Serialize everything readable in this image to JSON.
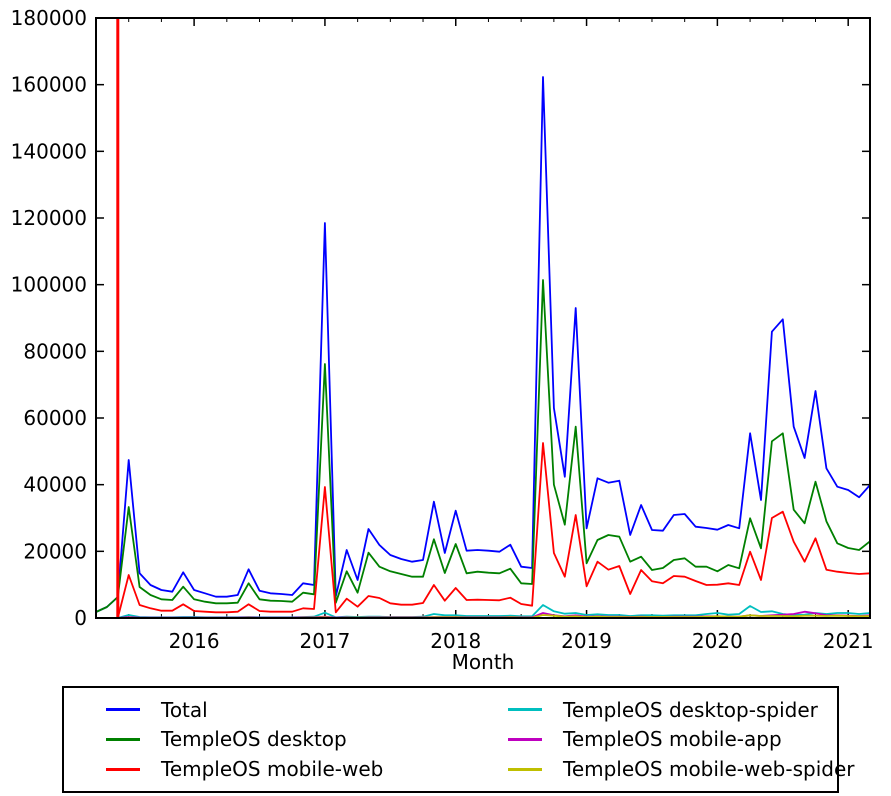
{
  "figure": {
    "background": "#ffffff",
    "axis_color": "#000000",
    "tick_direction": "in"
  },
  "chart_data": {
    "type": "line",
    "title": "",
    "xlabel": "Month",
    "ylabel": "",
    "ylim": [
      0,
      180000
    ],
    "yticks": [
      0,
      20000,
      40000,
      60000,
      80000,
      100000,
      120000,
      140000,
      160000,
      180000
    ],
    "xticks": [
      "2016",
      "2017",
      "2018",
      "2019",
      "2020",
      "2021"
    ],
    "minor_xticks_months": [
      "04",
      "07",
      "10"
    ],
    "grid": false,
    "legend_position": "bottom",
    "x_months": [
      "2015-04",
      "2015-05",
      "2015-06",
      "2015-07",
      "2015-08",
      "2015-09",
      "2015-10",
      "2015-11",
      "2015-12",
      "2016-01",
      "2016-02",
      "2016-03",
      "2016-04",
      "2016-05",
      "2016-06",
      "2016-07",
      "2016-08",
      "2016-09",
      "2016-10",
      "2016-11",
      "2016-12",
      "2017-01",
      "2017-02",
      "2017-03",
      "2017-04",
      "2017-05",
      "2017-06",
      "2017-07",
      "2017-08",
      "2017-09",
      "2017-10",
      "2017-11",
      "2017-12",
      "2018-01",
      "2018-02",
      "2018-03",
      "2018-04",
      "2018-05",
      "2018-06",
      "2018-07",
      "2018-08",
      "2018-09",
      "2018-10",
      "2018-11",
      "2018-12",
      "2019-01",
      "2019-02",
      "2019-03",
      "2019-04",
      "2019-05",
      "2019-06",
      "2019-07",
      "2019-08",
      "2019-09",
      "2019-10",
      "2019-11",
      "2019-12",
      "2020-01",
      "2020-02",
      "2020-03",
      "2020-04",
      "2020-05",
      "2020-06",
      "2020-07",
      "2020-08",
      "2020-09",
      "2020-10",
      "2020-11",
      "2020-12",
      "2021-01",
      "2021-02",
      "2021-03"
    ],
    "series": [
      {
        "name": "Total",
        "color": "#0000ff",
        "values": [
          1800,
          3300,
          6300,
          47400,
          13400,
          9900,
          8400,
          7900,
          13700,
          8400,
          7400,
          6400,
          6400,
          6900,
          14600,
          8200,
          7400,
          7200,
          6900,
          10400,
          9900,
          118500,
          6500,
          20400,
          11400,
          26700,
          21900,
          18900,
          17700,
          16900,
          17400,
          34900,
          19500,
          32200,
          20200,
          20400,
          20200,
          19900,
          22000,
          15400,
          15000,
          162300,
          63000,
          42400,
          93000,
          26900,
          41900,
          40600,
          41200,
          24900,
          33900,
          26400,
          26200,
          30900,
          31200,
          27400,
          27000,
          26500,
          27900,
          26900,
          55400,
          35400,
          85900,
          89600,
          57400,
          48000,
          68100,
          44900,
          39400,
          38400,
          36200,
          39900
        ]
      },
      {
        "name": "TempleOS desktop",
        "color": "#008000",
        "values": [
          1800,
          3300,
          6300,
          33300,
          9300,
          6900,
          5600,
          5400,
          9400,
          5600,
          4900,
          4400,
          4400,
          4600,
          10400,
          5600,
          5200,
          5100,
          4900,
          7600,
          7100,
          76200,
          4600,
          14000,
          7600,
          19600,
          15400,
          14000,
          13200,
          12400,
          12400,
          23600,
          13500,
          22200,
          13400,
          13900,
          13600,
          13400,
          14800,
          10400,
          10200,
          101400,
          40000,
          28000,
          57400,
          16400,
          23400,
          24900,
          24400,
          16900,
          18400,
          14400,
          15000,
          17400,
          17900,
          15400,
          15400,
          14000,
          15900,
          14900,
          29900,
          20900,
          53000,
          55400,
          32500,
          28400,
          40900,
          29000,
          22400,
          21000,
          20400,
          23000
        ]
      },
      {
        "name": "TempleOS mobile-web",
        "color": "#ff0000",
        "values": [
          0,
          0,
          0,
          12900,
          3900,
          2900,
          2200,
          2200,
          4100,
          2100,
          1900,
          1700,
          1700,
          1900,
          4100,
          2100,
          1900,
          1900,
          1900,
          2900,
          2700,
          39300,
          1700,
          5800,
          3400,
          6600,
          6000,
          4400,
          4000,
          4000,
          4500,
          9900,
          5200,
          9000,
          5400,
          5500,
          5400,
          5300,
          6100,
          4200,
          3700,
          52500,
          19500,
          12400,
          30900,
          9500,
          16900,
          14500,
          15600,
          7200,
          14400,
          11000,
          10400,
          12600,
          12400,
          11100,
          9900,
          10000,
          10400,
          9900,
          19900,
          11400,
          30000,
          31900,
          22900,
          16900,
          23900,
          14500,
          13900,
          13500,
          13200,
          13400
        ]
      },
      {
        "name": "TempleOS desktop-spider",
        "color": "#00bfbf",
        "values": [
          0,
          0,
          0,
          900,
          300,
          200,
          200,
          200,
          300,
          300,
          200,
          200,
          200,
          200,
          300,
          200,
          200,
          200,
          200,
          300,
          400,
          1600,
          200,
          400,
          300,
          400,
          400,
          300,
          300,
          300,
          400,
          1200,
          800,
          800,
          600,
          600,
          600,
          600,
          700,
          500,
          500,
          3900,
          2000,
          1300,
          1500,
          900,
          1100,
          900,
          900,
          600,
          800,
          800,
          700,
          800,
          800,
          800,
          1200,
          1500,
          1000,
          1200,
          3600,
          1800,
          2000,
          1200,
          900,
          1000,
          1500,
          1200,
          1500,
          1500,
          1200,
          1500
        ]
      },
      {
        "name": "TempleOS mobile-app",
        "color": "#bf00bf",
        "values": [
          0,
          0,
          0,
          300,
          100,
          100,
          100,
          100,
          100,
          100,
          100,
          100,
          100,
          100,
          200,
          100,
          100,
          100,
          100,
          200,
          200,
          400,
          100,
          200,
          100,
          200,
          200,
          200,
          200,
          200,
          200,
          300,
          300,
          300,
          200,
          200,
          200,
          200,
          300,
          200,
          200,
          1500,
          800,
          500,
          800,
          400,
          500,
          400,
          400,
          300,
          400,
          300,
          300,
          400,
          400,
          400,
          500,
          500,
          400,
          400,
          800,
          600,
          800,
          1000,
          1200,
          1900,
          1400,
          800,
          800,
          700,
          600,
          800
        ]
      },
      {
        "name": "TempleOS mobile-web-spider",
        "color": "#bfbf00",
        "values": [
          0,
          0,
          0,
          100,
          0,
          0,
          0,
          0,
          0,
          0,
          0,
          0,
          0,
          0,
          100,
          0,
          0,
          0,
          0,
          100,
          100,
          200,
          0,
          100,
          100,
          100,
          100,
          100,
          100,
          100,
          100,
          200,
          200,
          200,
          100,
          100,
          100,
          100,
          200,
          100,
          100,
          900,
          700,
          400,
          500,
          300,
          400,
          300,
          300,
          200,
          300,
          300,
          300,
          300,
          300,
          300,
          400,
          500,
          400,
          400,
          800,
          600,
          600,
          600,
          500,
          700,
          700,
          600,
          700,
          600,
          500,
          600
        ]
      }
    ],
    "annotations": [
      {
        "type": "vline",
        "x_month": "2015-06",
        "color": "#ff0000",
        "width": 3
      }
    ]
  }
}
